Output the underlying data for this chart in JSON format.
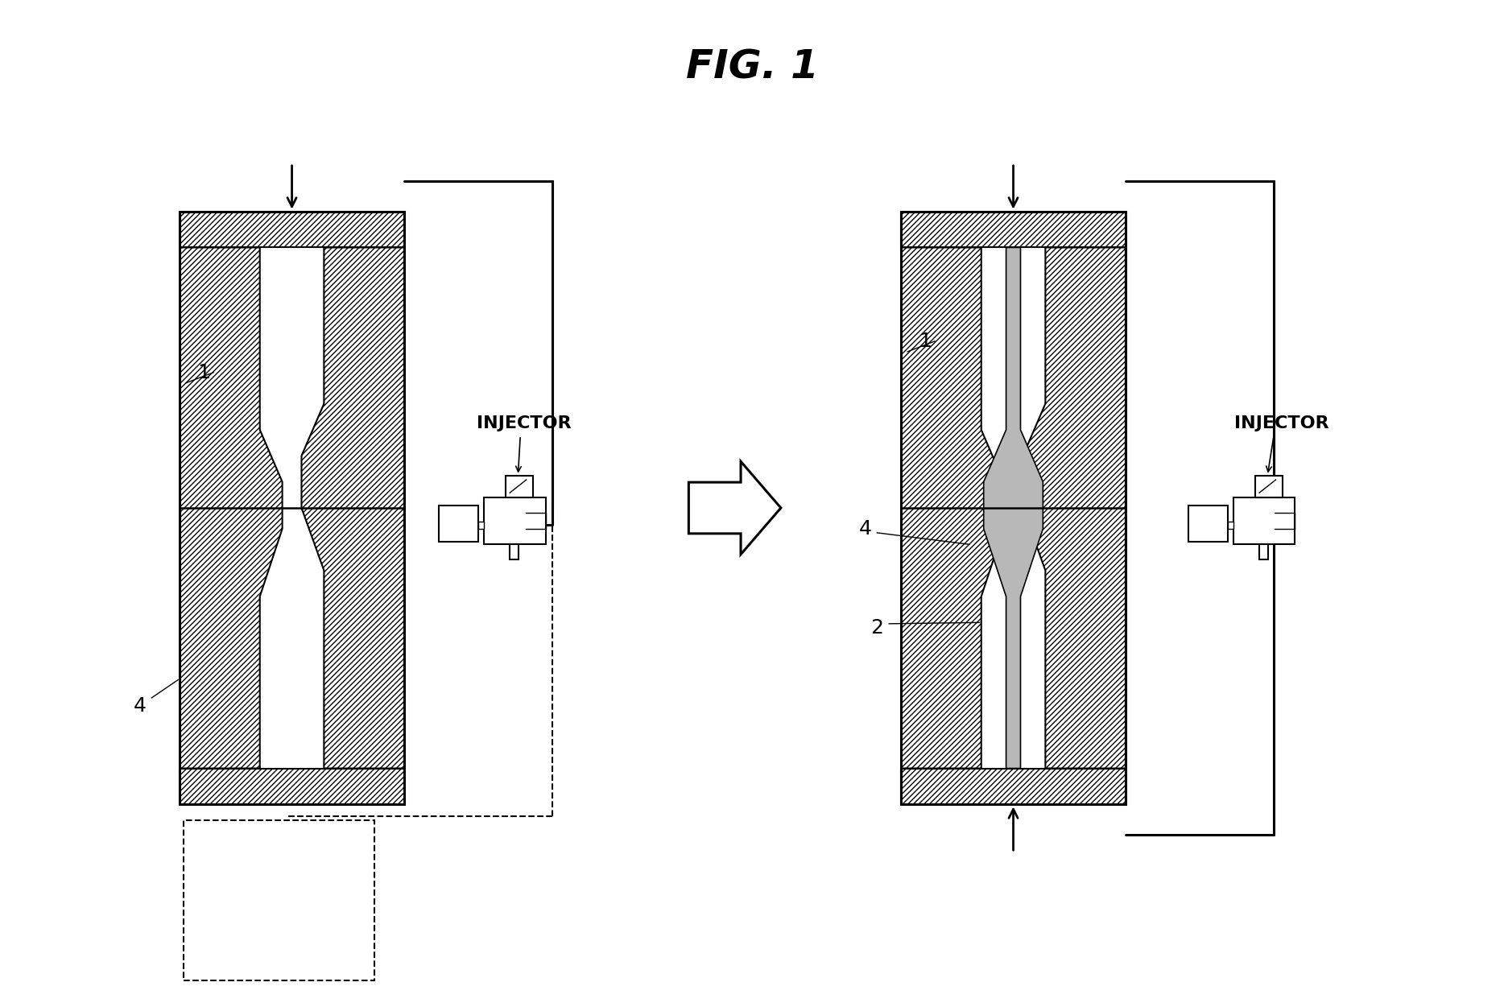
{
  "title": "FIG. 1",
  "title_fontsize": 36,
  "title_style": "italic",
  "title_weight": "bold",
  "bg_color": "#ffffff",
  "line_color": "#000000",
  "label_1_left": "1",
  "label_4_left": "4",
  "label_1_right": "1",
  "label_4_right": "4",
  "label_2_right": "2",
  "injector_label": "INJECTOR"
}
